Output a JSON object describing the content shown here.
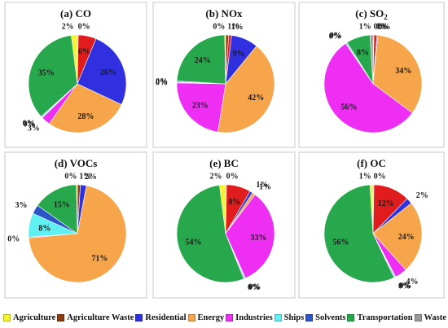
{
  "colors": {
    "Agriculture": "#f4f42e",
    "Agriculture Waste": "#8c3a14",
    "Residential": "#3030e0",
    "Energy": "#f7a54a",
    "Industries": "#ee2ef2",
    "Ships": "#5ef0f2",
    "Solvents": "#2c55c8",
    "Transportation": "#27a84c",
    "Waste": "#9a9a9a",
    "Red": "#e01c1c"
  },
  "legend": {
    "items": [
      {
        "label": "Agriculture",
        "color": "#f4f42e"
      },
      {
        "label": "Agriculture Waste",
        "color": "#8c3a14"
      },
      {
        "label": "Residential",
        "color": "#3030e0"
      },
      {
        "label": "Energy",
        "color": "#f7a54a"
      },
      {
        "label": "Industries",
        "color": "#ee2ef2"
      },
      {
        "label": "Ships",
        "color": "#5ef0f2"
      },
      {
        "label": "Solvents",
        "color": "#2c55c8"
      },
      {
        "label": "Transportation",
        "color": "#27a84c"
      },
      {
        "label": "Waste",
        "color": "#9a9a9a"
      }
    ]
  },
  "chart_data": [
    {
      "type": "pie",
      "title": "(a) CO",
      "slices": [
        {
          "name": "Agriculture Waste",
          "label": "0%",
          "value": 0.3,
          "color": "#8c3a14"
        },
        {
          "name": "Red",
          "label": "6%",
          "value": 6,
          "color": "#e01c1c"
        },
        {
          "name": "Residential",
          "label": "26%",
          "value": 26,
          "color": "#3030e0"
        },
        {
          "name": "Energy",
          "label": "28%",
          "value": 28,
          "color": "#f7a54a"
        },
        {
          "name": "Industries",
          "label": "3%",
          "value": 3,
          "color": "#ee2ef2"
        },
        {
          "name": "Ships",
          "label": "0%",
          "value": 0.3,
          "color": "#5ef0f2"
        },
        {
          "name": "Solvents",
          "label": "0%",
          "value": 0.3,
          "color": "#2c55c8"
        },
        {
          "name": "Transportation",
          "label": "35%",
          "value": 35,
          "color": "#27a84c"
        },
        {
          "name": "Agriculture",
          "label": "2%",
          "value": 2,
          "color": "#f4f42e"
        }
      ]
    },
    {
      "type": "pie",
      "title": "(b) NOx",
      "slices": [
        {
          "name": "Agriculture Waste",
          "label": "1%",
          "value": 1,
          "color": "#8c3a14"
        },
        {
          "name": "Red",
          "label": "1%",
          "value": 1,
          "color": "#e01c1c"
        },
        {
          "name": "Residential",
          "label": "9%",
          "value": 9,
          "color": "#3030e0"
        },
        {
          "name": "Energy",
          "label": "42%",
          "value": 42,
          "color": "#f7a54a"
        },
        {
          "name": "Industries",
          "label": "23%",
          "value": 23,
          "color": "#ee2ef2"
        },
        {
          "name": "Ships",
          "label": "0%",
          "value": 0.3,
          "color": "#5ef0f2"
        },
        {
          "name": "Solvents",
          "label": "0%",
          "value": 0.3,
          "color": "#2c55c8"
        },
        {
          "name": "Transportation",
          "label": "24%",
          "value": 24,
          "color": "#27a84c"
        },
        {
          "name": "Agriculture",
          "label": "0%",
          "value": 0.3,
          "color": "#f4f42e"
        }
      ]
    },
    {
      "type": "pie",
      "title": "(c) SO",
      "title_sub": "2",
      "slices": [
        {
          "name": "Agriculture Waste",
          "label": "0%",
          "value": 0.3,
          "color": "#8c3a14"
        },
        {
          "name": "Red",
          "label": "1%",
          "value": 1,
          "color": "#e01c1c"
        },
        {
          "name": "Residential",
          "label": "0%",
          "value": 0.3,
          "color": "#3030e0"
        },
        {
          "name": "Energy",
          "label": "34%",
          "value": 34,
          "color": "#f7a54a"
        },
        {
          "name": "Industries",
          "label": "56%",
          "value": 56,
          "color": "#ee2ef2"
        },
        {
          "name": "Ships",
          "label": "0%",
          "value": 0.3,
          "color": "#5ef0f2"
        },
        {
          "name": "Solvents",
          "label": "0%",
          "value": 0.3,
          "color": "#2c55c8"
        },
        {
          "name": "Transportation",
          "label": "8%",
          "value": 8,
          "color": "#27a84c"
        },
        {
          "name": "Waste",
          "label": "1%",
          "value": 1,
          "color": "#9a9a9a"
        }
      ]
    },
    {
      "type": "pie",
      "title": "(d) VOCs",
      "slices": [
        {
          "name": "Agriculture Waste",
          "label": "1%",
          "value": 1,
          "color": "#8c3a14"
        },
        {
          "name": "Residential",
          "label": "2%",
          "value": 2,
          "color": "#3030e0"
        },
        {
          "name": "Energy",
          "label": "71%",
          "value": 71,
          "color": "#f7a54a"
        },
        {
          "name": "Industries",
          "label": "0%",
          "value": 0.3,
          "color": "#ee2ef2"
        },
        {
          "name": "Ships",
          "label": "8%",
          "value": 8,
          "color": "#5ef0f2"
        },
        {
          "name": "Solvents",
          "label": "3%",
          "value": 3,
          "color": "#2c55c8"
        },
        {
          "name": "Transportation",
          "label": "15%",
          "value": 15,
          "color": "#27a84c"
        },
        {
          "name": "Agriculture",
          "label": "0%",
          "value": 0.3,
          "color": "#f4f42e"
        }
      ]
    },
    {
      "type": "pie",
      "title": "(e) BC",
      "slices": [
        {
          "name": "Agriculture Waste",
          "label": "0%",
          "value": 0.3,
          "color": "#8c3a14"
        },
        {
          "name": "Red",
          "label": "8%",
          "value": 8,
          "color": "#e01c1c"
        },
        {
          "name": "Residential",
          "label": "1%",
          "value": 1,
          "color": "#3030e0"
        },
        {
          "name": "Energy",
          "label": "1%",
          "value": 1,
          "color": "#f7a54a"
        },
        {
          "name": "Industries",
          "label": "33%",
          "value": 33,
          "color": "#ee2ef2"
        },
        {
          "name": "Ships",
          "label": "0%",
          "value": 0.3,
          "color": "#5ef0f2"
        },
        {
          "name": "Solvents",
          "label": "0%",
          "value": 0.3,
          "color": "#2c55c8"
        },
        {
          "name": "Transportation",
          "label": "54%",
          "value": 54,
          "color": "#27a84c"
        },
        {
          "name": "Agriculture",
          "label": "2%",
          "value": 2,
          "color": "#f4f42e"
        }
      ]
    },
    {
      "type": "pie",
      "title": "(f) OC",
      "slices": [
        {
          "name": "Agriculture Waste",
          "label": "0%",
          "value": 0.3,
          "color": "#8c3a14"
        },
        {
          "name": "Red",
          "label": "12%",
          "value": 12,
          "color": "#e01c1c"
        },
        {
          "name": "Residential",
          "label": "2%",
          "value": 2,
          "color": "#3030e0"
        },
        {
          "name": "Energy",
          "label": "24%",
          "value": 24,
          "color": "#f7a54a"
        },
        {
          "name": "Industries",
          "label": "4%",
          "value": 4,
          "color": "#ee2ef2"
        },
        {
          "name": "Ships",
          "label": "0%",
          "value": 0.3,
          "color": "#5ef0f2"
        },
        {
          "name": "Solvents",
          "label": "0%",
          "value": 0.3,
          "color": "#2c55c8"
        },
        {
          "name": "Transportation",
          "label": "56%",
          "value": 56,
          "color": "#27a84c"
        },
        {
          "name": "Agriculture",
          "label": "1%",
          "value": 1,
          "color": "#f4f42e"
        }
      ]
    }
  ]
}
